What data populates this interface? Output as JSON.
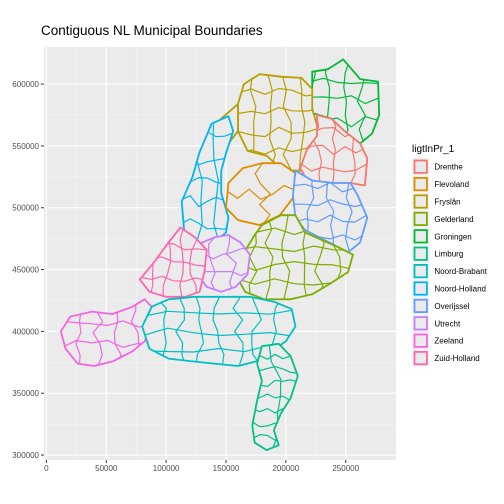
{
  "title": "Contiguous NL Municipal Boundaries",
  "chart_data": {
    "type": "map",
    "xlim": [
      -2000,
      292000
    ],
    "ylim": [
      296000,
      630000
    ],
    "x_ticks": [
      0,
      50000,
      100000,
      150000,
      200000,
      250000
    ],
    "x_tick_labels": [
      "0",
      "50000",
      "100000",
      "150000",
      "200000",
      "250000"
    ],
    "y_ticks": [
      300000,
      350000,
      400000,
      450000,
      500000,
      550000,
      600000
    ],
    "y_tick_labels": [
      "300000",
      "350000",
      "400000",
      "450000",
      "500000",
      "550000",
      "600000"
    ],
    "grid": true,
    "legend_position": "right",
    "legend": {
      "title": "ligtInPr_1",
      "entries": [
        {
          "label": "Drenthe",
          "color": "#F8766D"
        },
        {
          "label": "Flevoland",
          "color": "#DE8C00"
        },
        {
          "label": "Fryslân",
          "color": "#B79F00"
        },
        {
          "label": "Gelderland",
          "color": "#7CAE00"
        },
        {
          "label": "Groningen",
          "color": "#00BA38"
        },
        {
          "label": "Limburg",
          "color": "#00C08B"
        },
        {
          "label": "Noord-Brabant",
          "color": "#00BFC4"
        },
        {
          "label": "Noord-Holland",
          "color": "#00B4F0"
        },
        {
          "label": "Overijssel",
          "color": "#619CFF"
        },
        {
          "label": "Utrecht",
          "color": "#C77CFF"
        },
        {
          "label": "Zeeland",
          "color": "#F564E3"
        },
        {
          "label": "Zuid-Holland",
          "color": "#FF64B0"
        }
      ]
    },
    "colors": {
      "panel_background": "#EBEBEB",
      "grid_major": "#FFFFFF",
      "land_fill": "#EBEBEB"
    },
    "regions": [
      {
        "province": "Groningen",
        "outline": [
          [
            208000,
            582000
          ],
          [
            222000,
            596000
          ],
          [
            222000,
            610000
          ],
          [
            235000,
            612000
          ],
          [
            248000,
            620000
          ],
          [
            262000,
            604000
          ],
          [
            277000,
            602000
          ],
          [
            278000,
            575000
          ],
          [
            272000,
            560000
          ],
          [
            262000,
            552000
          ],
          [
            249000,
            562000
          ],
          [
            238000,
            572000
          ],
          [
            224000,
            576000
          ]
        ],
        "cells": [
          5,
          4
        ]
      },
      {
        "province": "Fryslân",
        "outline": [
          [
            160000,
            584000
          ],
          [
            165000,
            600000
          ],
          [
            178000,
            608000
          ],
          [
            196000,
            606000
          ],
          [
            213000,
            605000
          ],
          [
            222000,
            596000
          ],
          [
            222000,
            580000
          ],
          [
            228000,
            560000
          ],
          [
            218000,
            548000
          ],
          [
            212000,
            530000
          ],
          [
            198000,
            530000
          ],
          [
            184000,
            542000
          ],
          [
            168000,
            546000
          ],
          [
            160000,
            562000
          ]
        ],
        "cells": [
          5,
          5
        ]
      },
      {
        "province": "Fryslân",
        "outline": [
          [
            126000,
            538000
          ],
          [
            138000,
            542000
          ],
          [
            152000,
            552000
          ],
          [
            160000,
            562000
          ],
          [
            160000,
            584000
          ],
          [
            146000,
            572000
          ],
          [
            134000,
            558000
          ]
        ],
        "cells": [
          2,
          2
        ]
      },
      {
        "province": "Drenthe",
        "outline": [
          [
            226000,
            575000
          ],
          [
            238000,
            572000
          ],
          [
            249000,
            562000
          ],
          [
            262000,
            552000
          ],
          [
            268000,
            540000
          ],
          [
            266000,
            518000
          ],
          [
            254000,
            520000
          ],
          [
            240000,
            520000
          ],
          [
            230000,
            518000
          ],
          [
            218000,
            522000
          ],
          [
            212000,
            532000
          ],
          [
            218000,
            548000
          ],
          [
            226000,
            558000
          ]
        ],
        "cells": [
          4,
          4
        ]
      },
      {
        "province": "Noord-Holland",
        "outline": [
          [
            113000,
            505000
          ],
          [
            122000,
            525000
          ],
          [
            128000,
            545000
          ],
          [
            138000,
            568000
          ],
          [
            152000,
            574000
          ],
          [
            156000,
            562000
          ],
          [
            150000,
            544000
          ],
          [
            146000,
            530000
          ],
          [
            146000,
            512000
          ],
          [
            152000,
            492000
          ],
          [
            150000,
            480000
          ],
          [
            138000,
            470000
          ],
          [
            126000,
            472000
          ],
          [
            115000,
            482000
          ]
        ],
        "cells": [
          3,
          6
        ]
      },
      {
        "province": "Flevoland",
        "outline": [
          [
            152000,
            520000
          ],
          [
            164000,
            532000
          ],
          [
            180000,
            536000
          ],
          [
            196000,
            536000
          ],
          [
            208000,
            528000
          ],
          [
            206000,
            508000
          ],
          [
            195000,
            494000
          ],
          [
            178000,
            486000
          ],
          [
            160000,
            490000
          ],
          [
            150000,
            500000
          ]
        ],
        "cells": [
          2,
          2
        ]
      },
      {
        "province": "Overijssel",
        "outline": [
          [
            208000,
            530000
          ],
          [
            222000,
            522000
          ],
          [
            240000,
            520000
          ],
          [
            254000,
            520000
          ],
          [
            260000,
            510000
          ],
          [
            268000,
            492000
          ],
          [
            262000,
            472000
          ],
          [
            252000,
            464000
          ],
          [
            240000,
            470000
          ],
          [
            228000,
            476000
          ],
          [
            216000,
            482000
          ],
          [
            208000,
            492000
          ],
          [
            206000,
            510000
          ]
        ],
        "cells": [
          4,
          5
        ]
      },
      {
        "province": "Gelderland",
        "outline": [
          [
            180000,
            486000
          ],
          [
            196000,
            494000
          ],
          [
            208000,
            494000
          ],
          [
            216000,
            480000
          ],
          [
            230000,
            474000
          ],
          [
            244000,
            468000
          ],
          [
            256000,
            462000
          ],
          [
            252000,
            448000
          ],
          [
            236000,
            438000
          ],
          [
            222000,
            430000
          ],
          [
            204000,
            426000
          ],
          [
            182000,
            426000
          ],
          [
            166000,
            432000
          ],
          [
            158000,
            446000
          ],
          [
            164000,
            462000
          ],
          [
            174000,
            478000
          ]
        ],
        "cells": [
          7,
          5
        ]
      },
      {
        "province": "Utrecht",
        "outline": [
          [
            126000,
            470000
          ],
          [
            140000,
            476000
          ],
          [
            152000,
            478000
          ],
          [
            162000,
            472000
          ],
          [
            170000,
            462000
          ],
          [
            168000,
            446000
          ],
          [
            158000,
            436000
          ],
          [
            146000,
            432000
          ],
          [
            134000,
            436000
          ],
          [
            126000,
            446000
          ],
          [
            124000,
            458000
          ]
        ],
        "cells": [
          3,
          3
        ]
      },
      {
        "province": "Zuid-Holland",
        "outline": [
          [
            78000,
            442000
          ],
          [
            90000,
            456000
          ],
          [
            102000,
            472000
          ],
          [
            112000,
            484000
          ],
          [
            124000,
            476000
          ],
          [
            134000,
            466000
          ],
          [
            132000,
            448000
          ],
          [
            128000,
            432000
          ],
          [
            116000,
            428000
          ],
          [
            100000,
            428000
          ],
          [
            86000,
            432000
          ]
        ],
        "cells": [
          5,
          4
        ]
      },
      {
        "province": "Zeeland",
        "outline": [
          [
            12000,
            400000
          ],
          [
            20000,
            412000
          ],
          [
            38000,
            416000
          ],
          [
            55000,
            414000
          ],
          [
            72000,
            420000
          ],
          [
            82000,
            426000
          ],
          [
            90000,
            418000
          ],
          [
            88000,
            404000
          ],
          [
            82000,
            392000
          ],
          [
            72000,
            384000
          ],
          [
            56000,
            376000
          ],
          [
            40000,
            372000
          ],
          [
            26000,
            374000
          ],
          [
            16000,
            386000
          ]
        ],
        "cells": [
          5,
          3
        ]
      },
      {
        "province": "Noord-Brabant",
        "outline": [
          [
            80000,
            404000
          ],
          [
            88000,
            420000
          ],
          [
            102000,
            426000
          ],
          [
            124000,
            428000
          ],
          [
            146000,
            428000
          ],
          [
            170000,
            428000
          ],
          [
            190000,
            424000
          ],
          [
            205000,
            418000
          ],
          [
            208000,
            404000
          ],
          [
            200000,
            392000
          ],
          [
            188000,
            384000
          ],
          [
            176000,
            376000
          ],
          [
            160000,
            372000
          ],
          [
            140000,
            374000
          ],
          [
            120000,
            376000
          ],
          [
            102000,
            378000
          ],
          [
            86000,
            386000
          ]
        ],
        "cells": [
          8,
          4
        ]
      },
      {
        "province": "Limburg",
        "outline": [
          [
            180000,
            388000
          ],
          [
            194000,
            390000
          ],
          [
            204000,
            380000
          ],
          [
            210000,
            364000
          ],
          [
            204000,
            346000
          ],
          [
            196000,
            334000
          ],
          [
            190000,
            320000
          ],
          [
            194000,
            308000
          ],
          [
            184000,
            304000
          ],
          [
            174000,
            310000
          ],
          [
            172000,
            324000
          ],
          [
            176000,
            344000
          ],
          [
            180000,
            360000
          ],
          [
            176000,
            374000
          ]
        ],
        "cells": [
          2,
          8
        ]
      }
    ]
  }
}
